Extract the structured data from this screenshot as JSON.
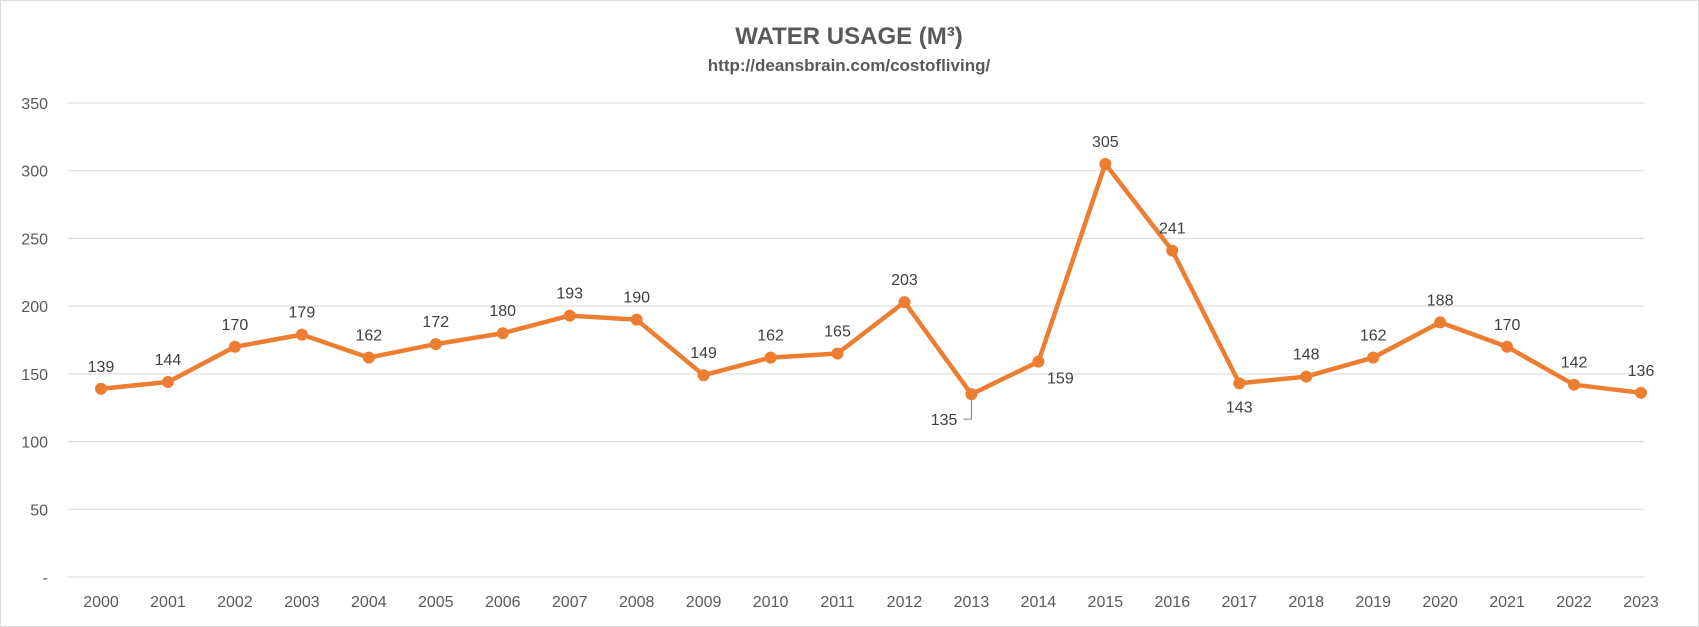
{
  "chart_data": {
    "type": "line",
    "title": "WATER USAGE (M³)",
    "subtitle": "http://deansbrain.com/costofliving/",
    "xlabel": "",
    "ylabel": "",
    "ylim": [
      0,
      350
    ],
    "ytick_values": [
      0,
      50,
      100,
      150,
      200,
      250,
      300,
      350
    ],
    "ytick_labels": [
      "-",
      "50",
      "100",
      "150",
      "200",
      "250",
      "300",
      "350"
    ],
    "grid": true,
    "legend": "none",
    "categories": [
      "2000",
      "2001",
      "2002",
      "2003",
      "2004",
      "2005",
      "2006",
      "2007",
      "2008",
      "2009",
      "2010",
      "2011",
      "2012",
      "2013",
      "2014",
      "2015",
      "2016",
      "2017",
      "2018",
      "2019",
      "2020",
      "2021",
      "2022",
      "2023"
    ],
    "series": [
      {
        "name": "Water Usage",
        "color": "#ed7d31",
        "values": [
          139,
          144,
          170,
          179,
          162,
          172,
          180,
          193,
          190,
          149,
          162,
          165,
          203,
          135,
          159,
          305,
          241,
          143,
          148,
          162,
          188,
          170,
          142,
          136
        ],
        "labels": [
          "139",
          "144",
          "170",
          "179",
          "162",
          "172",
          "180",
          "193",
          "190",
          "149",
          "162",
          "165",
          "203",
          "135",
          "159",
          "305",
          "241",
          "143",
          "148",
          "162",
          "188",
          "170",
          "142",
          "136"
        ],
        "label_positions": [
          "above",
          "above",
          "above",
          "above",
          "above",
          "above",
          "above",
          "above",
          "above",
          "above",
          "above",
          "above",
          "above",
          "below-left",
          "below-right",
          "above",
          "above",
          "below",
          "above",
          "above",
          "above",
          "above",
          "above",
          "above"
        ]
      }
    ]
  }
}
